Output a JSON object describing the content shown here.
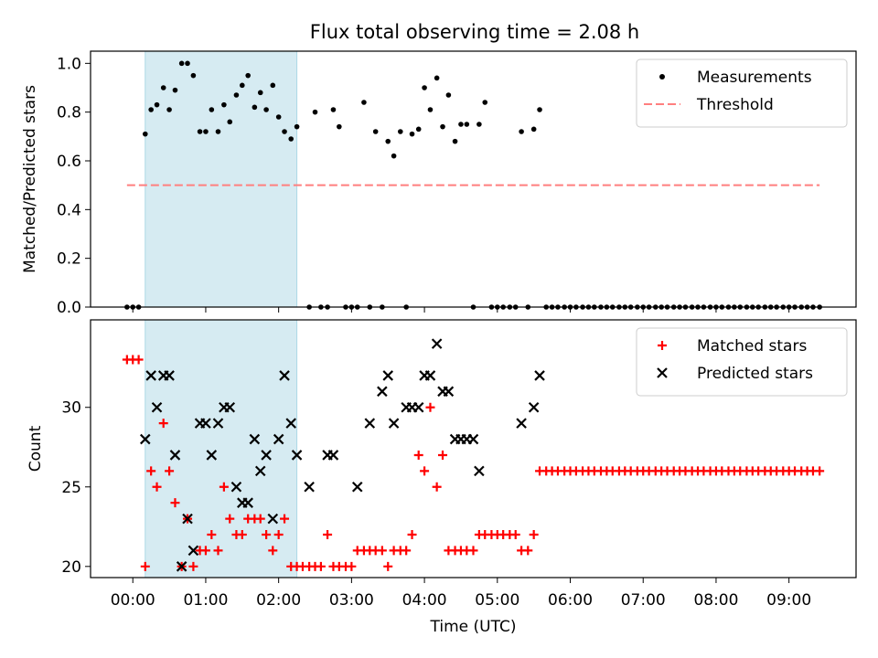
{
  "title": "Flux total observing time = 2.08 h",
  "chart_data": [
    {
      "type": "scatter",
      "panel": "top",
      "title": "Flux total observing time = 2.08 h",
      "xlabel": "",
      "ylabel": "Matched/Predicted stars",
      "ylim": [
        0.0,
        1.05
      ],
      "yticks": [
        0.0,
        0.2,
        0.4,
        0.6,
        0.8,
        1.0
      ],
      "ytick_labels": [
        "0.0",
        "0.2",
        "0.4",
        "0.6",
        "0.8",
        "1.0"
      ],
      "shaded_span_hours": [
        0.17,
        2.25
      ],
      "shade_color": "#add8e6",
      "legend_position": "upper right",
      "series": [
        {
          "name": "Measurements",
          "marker": "dot",
          "color": "#000000",
          "x_hours": [
            -0.08,
            0.0,
            0.08,
            0.17,
            0.25,
            0.33,
            0.42,
            0.5,
            0.58,
            0.67,
            0.75,
            0.83,
            0.92,
            1.0,
            1.08,
            1.17,
            1.25,
            1.33,
            1.42,
            1.5,
            1.58,
            1.67,
            1.75,
            1.83,
            1.92,
            2.0,
            2.08,
            2.17,
            2.25,
            2.42,
            2.5,
            2.58,
            2.67,
            2.75,
            2.83,
            2.92,
            3.0,
            3.08,
            3.17,
            3.25,
            3.33,
            3.42,
            3.5,
            3.58,
            3.67,
            3.75,
            3.83,
            3.92,
            4.0,
            4.08,
            4.17,
            4.25,
            4.33,
            4.42,
            4.5,
            4.58,
            4.67,
            4.75,
            4.83,
            4.92,
            5.0,
            5.08,
            5.17,
            5.25,
            5.33,
            5.42,
            5.5,
            5.58,
            5.67,
            5.75,
            5.83,
            5.92,
            6.0,
            6.08,
            6.17,
            6.25,
            6.33,
            6.42,
            6.5,
            6.58,
            6.67,
            6.75,
            6.83,
            6.92,
            7.0,
            7.08,
            7.17,
            7.25,
            7.33,
            7.42,
            7.5,
            7.58,
            7.67,
            7.75,
            7.83,
            7.92,
            8.0,
            8.08,
            8.17,
            8.25,
            8.33,
            8.42,
            8.5,
            8.58,
            8.67,
            8.75,
            8.83,
            8.92,
            9.0,
            9.08,
            9.17,
            9.25,
            9.33,
            9.42
          ],
          "y": [
            0,
            0,
            0,
            0.71,
            0.81,
            0.83,
            0.9,
            0.81,
            0.89,
            1.0,
            1.0,
            0.95,
            0.72,
            0.72,
            0.81,
            0.72,
            0.83,
            0.76,
            0.87,
            0.91,
            0.95,
            0.82,
            0.88,
            0.81,
            0.91,
            0.78,
            0.72,
            0.69,
            0.74,
            0,
            0.8,
            0,
            0,
            0.81,
            0.74,
            0,
            0,
            0,
            0.84,
            0,
            0.72,
            0,
            0.68,
            0.62,
            0.72,
            0,
            0.71,
            0.73,
            0.9,
            0.81,
            0.94,
            0.74,
            0.87,
            0.68,
            0.75,
            0.75,
            0,
            0.75,
            0.84,
            0,
            0,
            0,
            0,
            0,
            0.72,
            0,
            0.73,
            0.81,
            0,
            0,
            0,
            0,
            0,
            0,
            0,
            0,
            0,
            0,
            0,
            0,
            0,
            0,
            0,
            0,
            0,
            0,
            0,
            0,
            0,
            0,
            0,
            0,
            0,
            0,
            0,
            0,
            0,
            0,
            0,
            0,
            0,
            0,
            0,
            0,
            0,
            0,
            0,
            0,
            0,
            0,
            0,
            0,
            0,
            0
          ]
        },
        {
          "name": "Threshold",
          "marker": "dashed-line",
          "color": "#ff7f7f",
          "x_hours": [
            -0.08,
            9.42
          ],
          "y": [
            0.5,
            0.5
          ]
        }
      ]
    },
    {
      "type": "scatter",
      "panel": "bottom",
      "xlabel": "Time (UTC)",
      "ylabel": "Count",
      "ylim": [
        19.3,
        35.5
      ],
      "yticks": [
        20,
        25,
        30
      ],
      "ytick_labels": [
        "20",
        "25",
        "30"
      ],
      "xlim_hours": [
        -0.58,
        9.92
      ],
      "xticks_hours": [
        0,
        1,
        2,
        3,
        4,
        5,
        6,
        7,
        8,
        9
      ],
      "xtick_labels": [
        "00:00",
        "01:00",
        "02:00",
        "03:00",
        "04:00",
        "05:00",
        "06:00",
        "07:00",
        "08:00",
        "09:00"
      ],
      "shaded_span_hours": [
        0.17,
        2.25
      ],
      "shade_color": "#add8e6",
      "legend_position": "upper right",
      "series": [
        {
          "name": "Matched stars",
          "marker": "plus",
          "color": "#ff0000",
          "x_hours": [
            -0.08,
            0.0,
            0.08,
            0.17,
            0.25,
            0.33,
            0.42,
            0.5,
            0.58,
            0.67,
            0.75,
            0.83,
            0.92,
            1.0,
            1.08,
            1.17,
            1.25,
            1.33,
            1.42,
            1.5,
            1.58,
            1.67,
            1.75,
            1.83,
            1.92,
            2.0,
            2.08,
            2.17,
            2.25,
            2.33,
            2.42,
            2.5,
            2.58,
            2.67,
            2.75,
            2.83,
            2.92,
            3.0,
            3.08,
            3.17,
            3.25,
            3.33,
            3.42,
            3.5,
            3.58,
            3.67,
            3.75,
            3.83,
            3.92,
            4.0,
            4.08,
            4.17,
            4.25,
            4.33,
            4.42,
            4.5,
            4.58,
            4.67,
            4.75,
            4.83,
            4.92,
            5.0,
            5.08,
            5.17,
            5.25,
            5.33,
            5.42,
            5.5,
            5.58,
            5.67,
            5.75,
            5.83,
            5.92,
            6.0,
            6.08,
            6.17,
            6.25,
            6.33,
            6.42,
            6.5,
            6.58,
            6.67,
            6.75,
            6.83,
            6.92,
            7.0,
            7.08,
            7.17,
            7.25,
            7.33,
            7.42,
            7.5,
            7.58,
            7.67,
            7.75,
            7.83,
            7.92,
            8.0,
            8.08,
            8.17,
            8.25,
            8.33,
            8.42,
            8.5,
            8.58,
            8.67,
            8.75,
            8.83,
            8.92,
            9.0,
            9.08,
            9.17,
            9.25,
            9.33,
            9.42
          ],
          "y": [
            33,
            33,
            33,
            20,
            26,
            25,
            29,
            26,
            24,
            20,
            23,
            20,
            21,
            21,
            22,
            21,
            25,
            23,
            22,
            22,
            23,
            23,
            23,
            22,
            21,
            22,
            23,
            20,
            20,
            20,
            20,
            20,
            20,
            22,
            20,
            20,
            20,
            20,
            21,
            21,
            21,
            21,
            21,
            20,
            21,
            21,
            21,
            22,
            27,
            26,
            30,
            25,
            27,
            21,
            21,
            21,
            21,
            21,
            22,
            22,
            22,
            22,
            22,
            22,
            22,
            21,
            21,
            22,
            26,
            26,
            26,
            26,
            26,
            26,
            26,
            26,
            26,
            26,
            26,
            26,
            26,
            26,
            26,
            26,
            26,
            26,
            26,
            26,
            26,
            26,
            26,
            26,
            26,
            26,
            26,
            26,
            26,
            26,
            26,
            26,
            26,
            26,
            26,
            26,
            26,
            26,
            26,
            26,
            26,
            26,
            26,
            26,
            26,
            26,
            26
          ]
        },
        {
          "name": "Predicted stars",
          "marker": "x",
          "color": "#000000",
          "x_hours": [
            0.17,
            0.25,
            0.33,
            0.42,
            0.5,
            0.58,
            0.67,
            0.75,
            0.83,
            0.92,
            1.0,
            1.08,
            1.17,
            1.25,
            1.33,
            1.42,
            1.5,
            1.58,
            1.67,
            1.75,
            1.83,
            1.92,
            2.0,
            2.08,
            2.17,
            2.25,
            2.42,
            2.67,
            2.75,
            3.08,
            3.25,
            3.42,
            3.5,
            3.58,
            3.75,
            3.83,
            3.92,
            4.0,
            4.08,
            4.17,
            4.25,
            4.33,
            4.42,
            4.5,
            4.58,
            4.67,
            4.75,
            5.33,
            5.5,
            5.58
          ],
          "y": [
            28,
            32,
            30,
            32,
            32,
            27,
            20,
            23,
            21,
            29,
            29,
            27,
            29,
            30,
            30,
            25,
            24,
            24,
            28,
            26,
            27,
            23,
            28,
            32,
            29,
            27,
            25,
            27,
            27,
            25,
            29,
            31,
            32,
            29,
            30,
            30,
            30,
            32,
            32,
            34,
            31,
            31,
            28,
            28,
            28,
            28,
            26,
            29,
            30,
            32
          ]
        }
      ]
    }
  ]
}
